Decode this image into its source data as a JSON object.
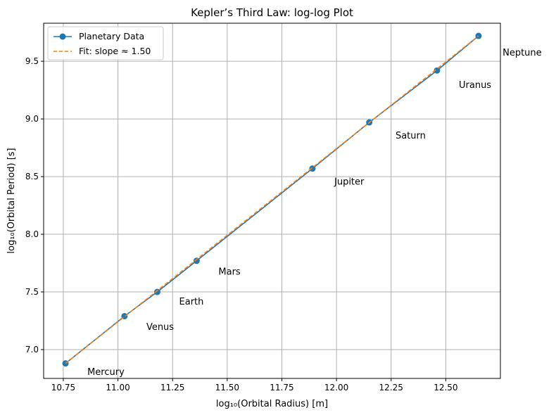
{
  "chart_data": {
    "type": "line",
    "title": "Kepler’s Third Law: log-log Plot",
    "xlabel": "log₁₀(Orbital Radius) [m]",
    "ylabel": "log₁₀(Orbital Period) [s]",
    "xlim": [
      10.66,
      12.75
    ],
    "ylim": [
      6.75,
      9.83
    ],
    "xticks": [
      10.75,
      11.0,
      11.25,
      11.5,
      11.75,
      12.0,
      12.25,
      12.5
    ],
    "xtick_labels": [
      "10.75",
      "11.00",
      "11.25",
      "11.50",
      "11.75",
      "12.00",
      "12.25",
      "12.50"
    ],
    "yticks": [
      7.0,
      7.5,
      8.0,
      8.5,
      9.0,
      9.5
    ],
    "ytick_labels": [
      "7.0",
      "7.5",
      "8.0",
      "8.5",
      "9.0",
      "9.5"
    ],
    "grid": true,
    "legend_position": "top-left",
    "series": [
      {
        "name": "Planetary Data",
        "style": "line-with-markers",
        "color": "#1f77b4",
        "x": [
          10.76,
          11.03,
          11.18,
          11.36,
          11.89,
          12.15,
          12.46,
          12.65
        ],
        "y": [
          6.88,
          7.29,
          7.5,
          7.77,
          8.57,
          8.97,
          9.42,
          9.72
        ]
      },
      {
        "name": "Fit: slope ≈ 1.50",
        "style": "dashed",
        "color": "#ff7f0e",
        "x": [
          10.76,
          12.65
        ],
        "y": [
          6.88,
          9.72
        ]
      }
    ],
    "annotations": [
      {
        "text": "Mercury",
        "x": 10.86,
        "y": 6.78
      },
      {
        "text": "Venus",
        "x": 11.13,
        "y": 7.17
      },
      {
        "text": "Earth",
        "x": 11.28,
        "y": 7.39
      },
      {
        "text": "Mars",
        "x": 11.46,
        "y": 7.65
      },
      {
        "text": "Jupiter",
        "x": 11.99,
        "y": 8.43
      },
      {
        "text": "Saturn",
        "x": 12.27,
        "y": 8.83
      },
      {
        "text": "Uranus",
        "x": 12.56,
        "y": 9.27
      },
      {
        "text": "Neptune",
        "x": 12.76,
        "y": 9.55
      }
    ]
  }
}
